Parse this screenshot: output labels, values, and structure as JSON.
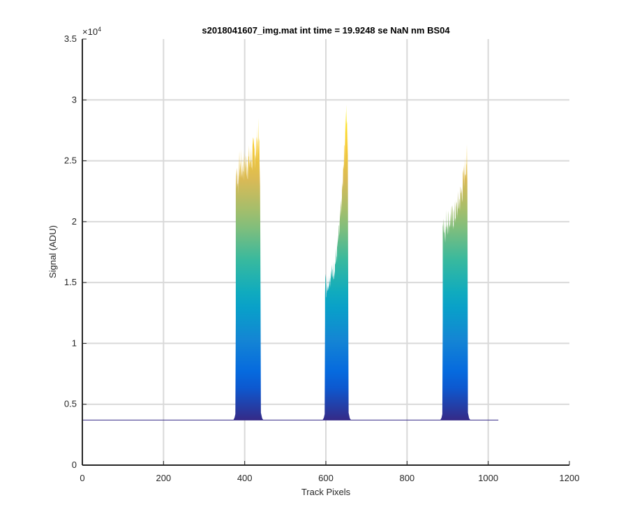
{
  "chart_data": {
    "type": "area",
    "title": "s2018041607_img.mat int time = 19.9248 se  NaN nm BS04",
    "xlabel": "Track Pixels",
    "ylabel": "Signal (ADU)",
    "exponent_label": "×10",
    "exponent_power": "4",
    "xlim": [
      0,
      1200
    ],
    "ylim": [
      0,
      35000
    ],
    "x_ticks": [
      0,
      200,
      400,
      600,
      800,
      1000,
      1200
    ],
    "y_ticks": [
      0,
      5000,
      10000,
      15000,
      20000,
      25000,
      30000,
      35000
    ],
    "x_tick_labels": [
      "0",
      "200",
      "400",
      "600",
      "800",
      "1000",
      "1200"
    ],
    "y_tick_labels": [
      "0",
      "0.5",
      "1",
      "1.5",
      "2",
      "2.5",
      "3",
      "3.5"
    ],
    "grid": true,
    "colormap": "parula",
    "colormap_colors": [
      "#352A87",
      "#0363E1",
      "#1485D4",
      "#06A7C6",
      "#38B99E",
      "#92BF73",
      "#D9BA56",
      "#FCCE2E",
      "#F9FB0E"
    ],
    "series": [
      {
        "values": [
          {
            "x": 0,
            "y": 3700
          },
          {
            "x": 1025,
            "y": 3700
          }
        ]
      }
    ],
    "peaks": [
      {
        "x_start": 378,
        "x_end": 440,
        "x_peak": 435,
        "y_left": 24500,
        "y_peak": 27000,
        "y_right": 24000
      },
      {
        "x_start": 598,
        "x_end": 656,
        "x_peak": 651,
        "y_left": 15300,
        "y_peak": 29700,
        "y_right": 27000
      },
      {
        "x_start": 888,
        "x_end": 950,
        "x_peak": 947,
        "y_left": 20000,
        "y_peak": 25400,
        "y_right": 23000
      }
    ]
  }
}
